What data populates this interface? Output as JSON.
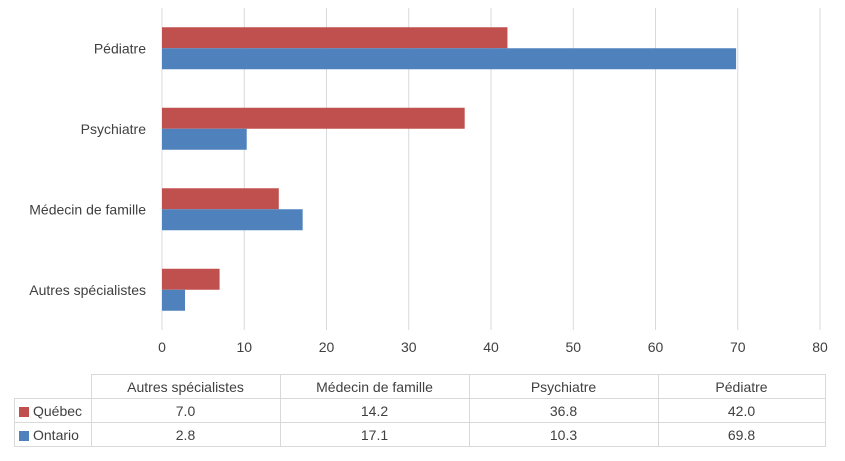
{
  "chart_data": {
    "type": "bar",
    "orientation": "horizontal",
    "categories": [
      "Autres spécialistes",
      "Médecin de famille",
      "Psychiatre",
      "Pédiatre"
    ],
    "series": [
      {
        "name": "Québec",
        "values": [
          7.0,
          14.2,
          36.8,
          42.0
        ],
        "color": "#c0504d"
      },
      {
        "name": "Ontario",
        "values": [
          2.8,
          17.1,
          10.3,
          69.8
        ],
        "color": "#4f81bd"
      }
    ],
    "xlim": [
      0,
      80
    ],
    "xticks": [
      0,
      10,
      20,
      30,
      40,
      50,
      60,
      70,
      80
    ],
    "grid": "vertical",
    "legend": "data-table",
    "data_table": {
      "rows": [
        {
          "label": "Québec",
          "values": [
            "7.0",
            "14.2",
            "36.8",
            "42.0"
          ]
        },
        {
          "label": "Ontario",
          "values": [
            "2.8",
            "17.1",
            "10.3",
            "69.8"
          ]
        }
      ]
    }
  }
}
